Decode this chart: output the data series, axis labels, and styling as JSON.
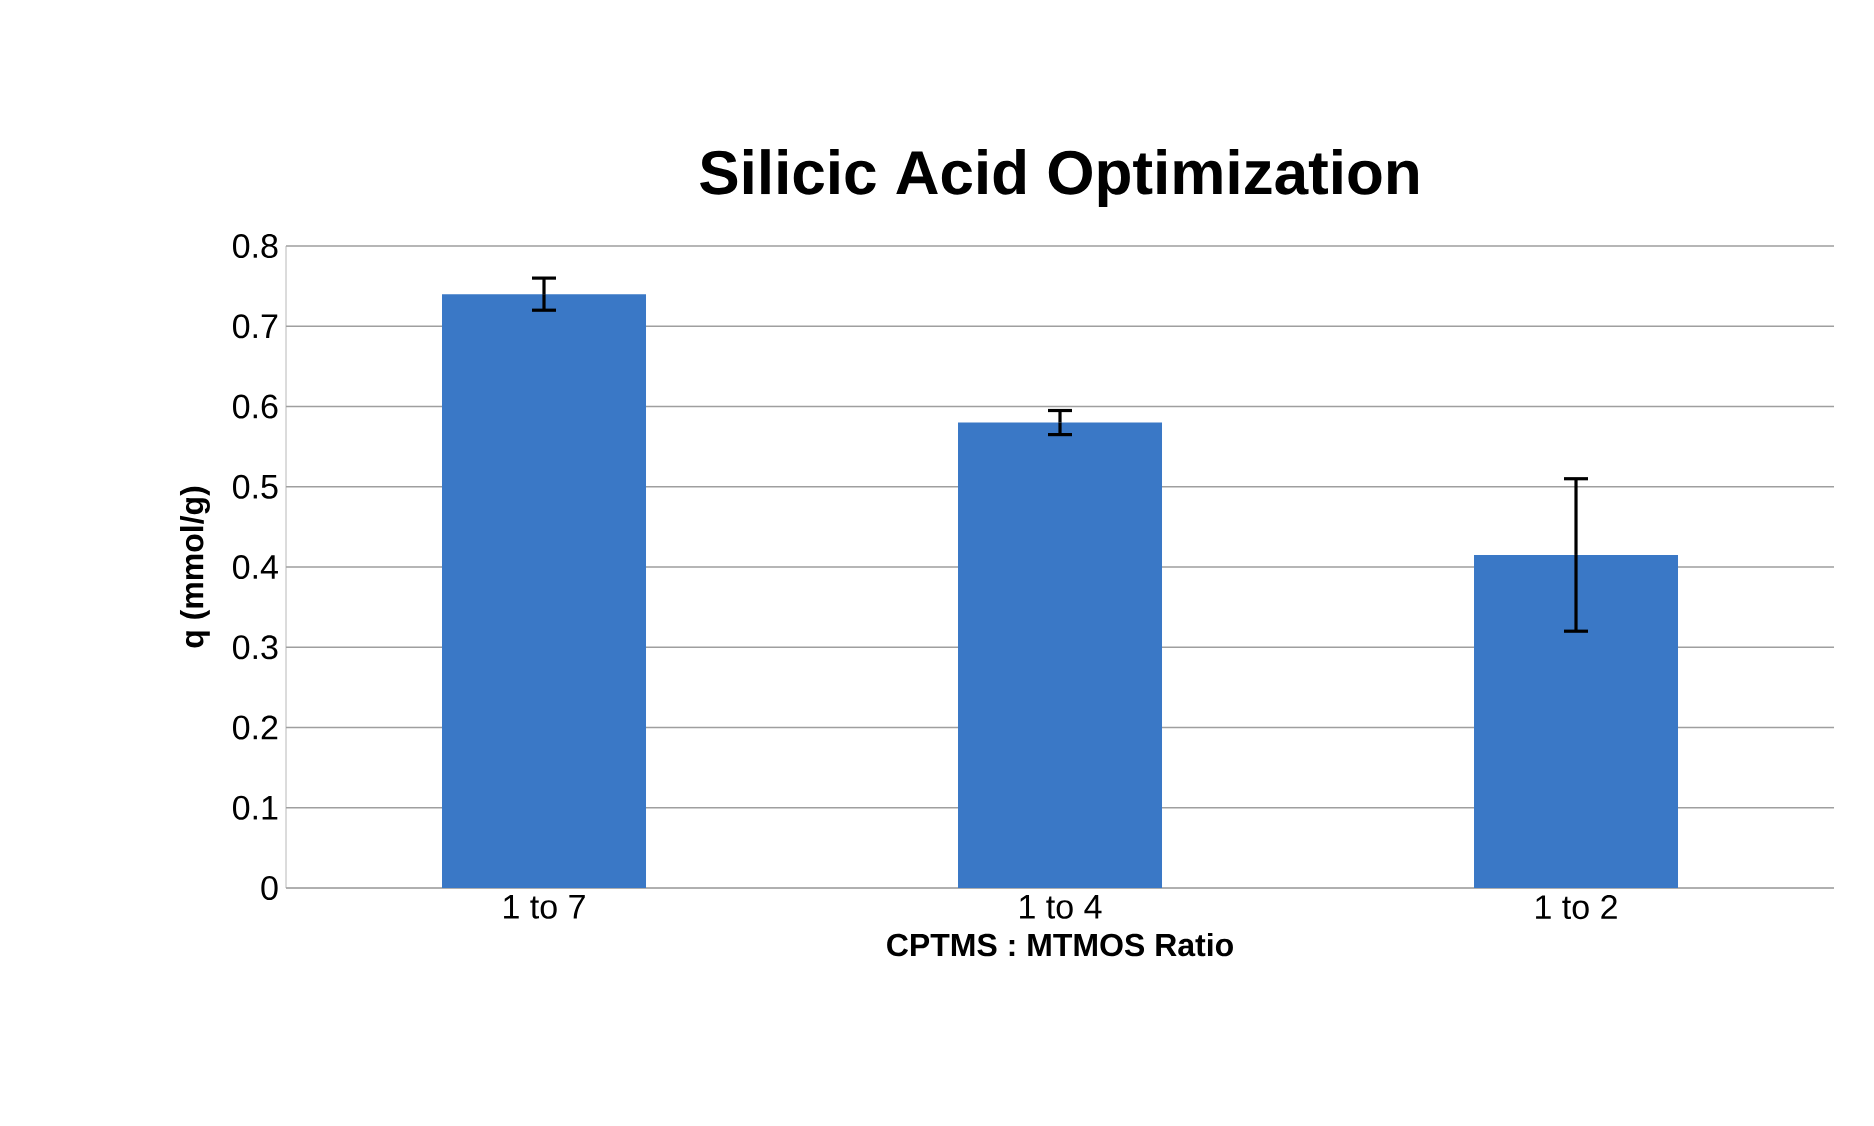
{
  "chart_data": {
    "type": "bar",
    "title": "Silicic Acid Optimization",
    "xlabel": "CPTMS : MTMOS Ratio",
    "ylabel": "q (mmol/g)",
    "categories": [
      "1 to 7",
      "1 to 4",
      "1 to 2"
    ],
    "values": [
      0.74,
      0.58,
      0.415
    ],
    "errors": [
      0.02,
      0.015,
      0.095
    ],
    "color": "#3a78c6",
    "ylim": [
      0,
      0.8
    ],
    "yticks": [
      0,
      0.1,
      0.2,
      0.3,
      0.4,
      0.5,
      0.6,
      0.7,
      0.8
    ],
    "grid": "y"
  }
}
